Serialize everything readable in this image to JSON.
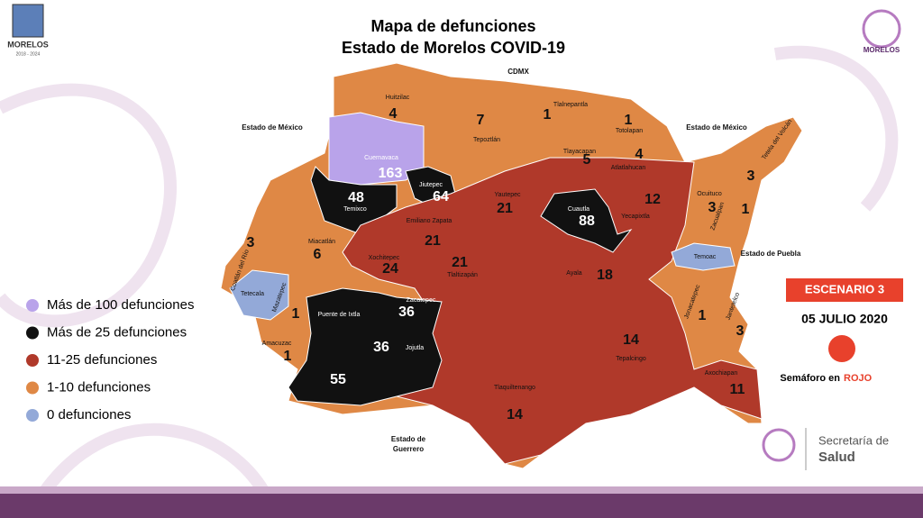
{
  "header": {
    "title": "Mapa de defunciones",
    "subtitle": "Estado de Morelos COVID-19"
  },
  "logos": {
    "left_name": "MORELOS",
    "left_years": "2018 - 2024",
    "right_name": "MORELOS",
    "footer_line1": "Secretaría de",
    "footer_line2": "Salud"
  },
  "neighbors": [
    "CDMX",
    "Estado de México",
    "Estado de México",
    "Estado de Puebla",
    "Estado de",
    "Guerrero"
  ],
  "legend": [
    {
      "label": "Más de 100 defunciones",
      "color": "#b9a3ea"
    },
    {
      "label": "Más de 25 defunciones",
      "color": "#111111"
    },
    {
      "label": "11-25 defunciones",
      "color": "#b0392a"
    },
    {
      "label": "1-10 defunciones",
      "color": "#df8845"
    },
    {
      "label": "0 defunciones",
      "color": "#93a9d8"
    }
  ],
  "scenario": {
    "label": "ESCENARIO 3",
    "date": "05 JULIO 2020",
    "light_prefix": "Semáforo en",
    "light_color": "ROJO"
  },
  "municipalities": [
    {
      "name": "Huitzilac",
      "deaths": 4
    },
    {
      "name": "Tepoztlán",
      "deaths": 7
    },
    {
      "name": "Tlalnepantla",
      "deaths": 1
    },
    {
      "name": "Totolapan",
      "deaths": 1
    },
    {
      "name": "Tlayacapan",
      "deaths": 5
    },
    {
      "name": "Atlatlahucan",
      "deaths": 4
    },
    {
      "name": "Cuernavaca",
      "deaths": 163
    },
    {
      "name": "Jiutepec",
      "deaths": 64
    },
    {
      "name": "Temixco",
      "deaths": 48
    },
    {
      "name": "Emiliano Zapata",
      "deaths": 21
    },
    {
      "name": "Yautepec",
      "deaths": 21
    },
    {
      "name": "Cuautla",
      "deaths": 88
    },
    {
      "name": "Yecapixtla",
      "deaths": 12
    },
    {
      "name": "Tetela del Volcán",
      "deaths": 3
    },
    {
      "name": "Ocuituco",
      "deaths": 3
    },
    {
      "name": "Zacualpan",
      "deaths": 1
    },
    {
      "name": "Temoac"
    },
    {
      "name": "Miacatlán",
      "deaths": 6
    },
    {
      "name": "Coatlán del Río",
      "deaths": 3
    },
    {
      "name": "Tetecala"
    },
    {
      "name": "Mazatepec",
      "deaths": 1
    },
    {
      "name": "Xochitepec",
      "deaths": 24
    },
    {
      "name": "Tlaltizapán",
      "deaths": 21
    },
    {
      "name": "Ayala",
      "deaths": 18
    },
    {
      "name": "Jonacatepec",
      "deaths": 1
    },
    {
      "name": "Jantetelco",
      "deaths": 3
    },
    {
      "name": "Puente de Ixtla",
      "deaths": 55
    },
    {
      "name": "Zacatepec",
      "deaths": 36
    },
    {
      "name": "Jojutla",
      "deaths": 36
    },
    {
      "name": "Amacuzac",
      "deaths": 1
    },
    {
      "name": "Tepalcingo",
      "deaths": 14
    },
    {
      "name": "Axochiapan",
      "deaths": 11
    },
    {
      "name": "Tlaquiltenango",
      "deaths": 14
    }
  ]
}
